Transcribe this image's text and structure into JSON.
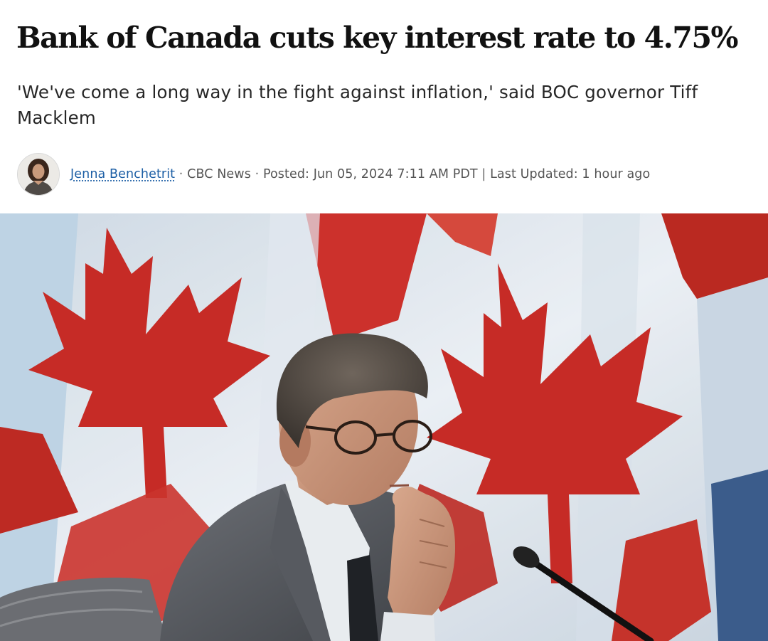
{
  "article": {
    "headline": "Bank of Canada cuts key interest rate to 4.75%",
    "deck": "'We've come a long way in the fight against inflation,' said BOC governor Tiff Macklem"
  },
  "byline": {
    "author": "Jenna Benchetrit",
    "separator": "·",
    "source": "CBC News",
    "posted": "Posted: Jun 05, 2024 7:11 AM PDT",
    "divider": "|",
    "updated": "Last Updated: 1 hour ago"
  },
  "colors": {
    "author_link": "#1d5fa5",
    "flag_red": "#c21a14",
    "flag_white": "#eef2f6"
  },
  "icons": {
    "avatar": "author-avatar-photo",
    "hero": "hero-photo-macklem-before-canadian-flags"
  }
}
